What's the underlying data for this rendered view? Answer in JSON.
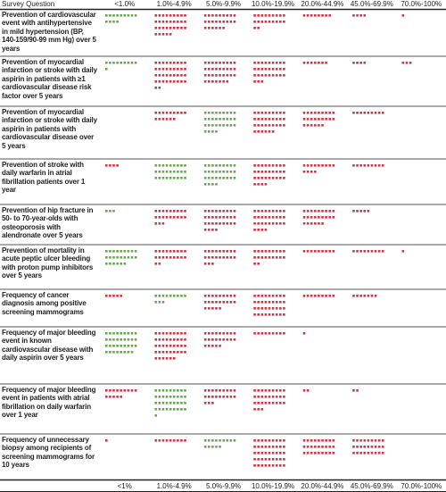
{
  "header": {
    "question_label": "Survey Question",
    "columns": [
      "<1.0%",
      "1.0%-4.9%",
      "5.0%-9.9%",
      "10.0%-19.9%",
      "20.0%-44.9%",
      "45.0%-69.9%",
      "70.0%-100%"
    ]
  },
  "footer": {
    "columns": [
      "<1%",
      "1.0%-4.9%",
      "5.0%-9.9%",
      "10.0%-19.9%",
      "20.0%-44.9%",
      "45.0%-69.9%",
      "70.0%-100%"
    ]
  },
  "dot_colors": {
    "correct": "#6fa35a",
    "incorrect": "#c43a4e"
  },
  "rows": [
    {
      "question": "Prevention of cardiovascular event with antihypertensive in mild hypertension (BP, 140-159/90-99 mm Hg) over 5 years",
      "cells": [
        {
          "n": 13,
          "correct": true
        },
        {
          "n": 32,
          "correct": false
        },
        {
          "n": 24,
          "correct": false
        },
        {
          "n": 20,
          "correct": false
        },
        {
          "n": 8,
          "correct": false
        },
        {
          "n": 4,
          "correct": false
        },
        {
          "n": 1,
          "correct": false
        }
      ]
    },
    {
      "question": "Prevention of myocardial infarction or stroke with daily aspirin in patients with ≥1 cardiovascular disease risk factor over 5 years",
      "cells": [
        {
          "n": 10,
          "correct": true
        },
        {
          "n": 38,
          "correct": false
        },
        {
          "n": 34,
          "correct": false
        },
        {
          "n": 30,
          "correct": false
        },
        {
          "n": 7,
          "correct": false
        },
        {
          "n": 4,
          "correct": false
        },
        {
          "n": 3,
          "correct": false
        }
      ]
    },
    {
      "question": "Prevention of myocardial infarction or stroke with daily aspirin in patients with cardiovascular disease over 5 years",
      "cells": [
        null,
        {
          "n": 15,
          "correct": false
        },
        {
          "n": 31,
          "correct": true
        },
        {
          "n": 33,
          "correct": false
        },
        {
          "n": 24,
          "correct": false
        },
        {
          "n": 9,
          "correct": false
        },
        null
      ]
    },
    {
      "question": "Prevention of stroke with daily warfarin in atrial fibrillation patients over 1 year",
      "cells": [
        {
          "n": 4,
          "correct": false
        },
        {
          "n": 27,
          "correct": true
        },
        {
          "n": 31,
          "correct": true
        },
        {
          "n": 31,
          "correct": false
        },
        {
          "n": 13,
          "correct": false
        },
        {
          "n": 9,
          "correct": false
        },
        null
      ]
    },
    {
      "question": "Prevention of hip fracture in 50- to 70-year-olds with osteoporosis with alendronate over 5 years",
      "cells": [
        {
          "n": 3,
          "correct": true
        },
        {
          "n": 21,
          "correct": false
        },
        {
          "n": 31,
          "correct": false
        },
        {
          "n": 31,
          "correct": false
        },
        {
          "n": 24,
          "correct": false
        },
        {
          "n": 5,
          "correct": false
        },
        null
      ]
    },
    {
      "question": "Prevention of mortality in acute peptic ulcer bleeding with proton pump inhibitors over 5 years",
      "cells": [
        {
          "n": 24,
          "correct": true
        },
        {
          "n": 20,
          "correct": false
        },
        {
          "n": 21,
          "correct": false
        },
        {
          "n": 20,
          "correct": false
        },
        {
          "n": 9,
          "correct": false
        },
        {
          "n": 9,
          "correct": false
        },
        {
          "n": 1,
          "correct": false
        }
      ]
    },
    {
      "question": "Frequency of cancer diagnosis among positive screening mammograms",
      "cells": [
        {
          "n": 5,
          "correct": false
        },
        {
          "n": 12,
          "correct": true
        },
        {
          "n": 23,
          "correct": false
        },
        {
          "n": 36,
          "correct": false
        },
        {
          "n": 9,
          "correct": false
        },
        {
          "n": 7,
          "correct": false
        },
        null
      ]
    },
    {
      "question": "Frequency of major bleeding event in known cardiovascular disease with daily aspirin over 5 years",
      "cells": [
        {
          "n": 35,
          "correct": true
        },
        {
          "n": 42,
          "correct": false
        },
        {
          "n": 23,
          "correct": false
        },
        {
          "n": 9,
          "correct": false
        },
        {
          "n": 1,
          "correct": false
        },
        null,
        null
      ]
    },
    {
      "question": "Frequency of major bleeding event in patients with atrial fibrillation on daily warfarin over 1 year",
      "cells": [
        {
          "n": 14,
          "correct": false
        },
        {
          "n": 37,
          "correct": true
        },
        {
          "n": 21,
          "correct": false
        },
        {
          "n": 30,
          "correct": false
        },
        {
          "n": 2,
          "correct": false
        },
        {
          "n": 2,
          "correct": false
        },
        null
      ]
    },
    {
      "question": "Frequency of unnecessary biopsy among recipients of screening mammograms for 10 years",
      "cells": [
        {
          "n": 1,
          "correct": false
        },
        {
          "n": 9,
          "correct": false
        },
        {
          "n": 14,
          "correct": true
        },
        {
          "n": 45,
          "correct": false
        },
        {
          "n": 27,
          "correct": false
        },
        {
          "n": 27,
          "correct": false
        },
        null
      ]
    }
  ]
}
